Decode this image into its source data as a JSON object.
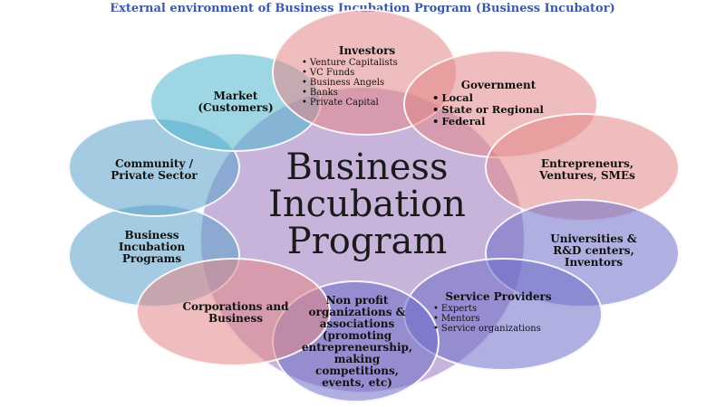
{
  "title": "External environment of Business Incubation Program (Business Incubator)",
  "center": {
    "line1": "Business",
    "line2": "Incubation",
    "line3": "Program"
  },
  "nodes": {
    "investors": {
      "label": "Investors",
      "items": [
        "Venture Capitalists",
        "VC Funds",
        "Business Angels",
        "Banks",
        "Private Capital"
      ]
    },
    "government": {
      "label": "Government",
      "items": [
        "Local",
        "State or Regional",
        "Federal"
      ]
    },
    "entrepreneurs": {
      "line1": "Entrepreneurs,",
      "line2": "Ventures, SMEs"
    },
    "universities": {
      "line1": "Universities &",
      "line2": "R&D centers,",
      "line3": "Inventors"
    },
    "service_providers": {
      "label": "Service Providers",
      "items": [
        "Experts",
        "Mentors",
        "Service organizations"
      ]
    },
    "nonprofit": {
      "line1": "Non profit",
      "line2": "organizations &",
      "line3": "associations",
      "line4": "(promoting",
      "line5": "entrepreneurship,",
      "line6": "making",
      "line7": "competitions,",
      "line8": "events, etc)"
    },
    "corporations": {
      "line1": "Corporations and",
      "line2": "Business"
    },
    "bip": {
      "line1": "Business",
      "line2": "Incubation",
      "line3": "Programs"
    },
    "community": {
      "line1": "Community /",
      "line2": "Private Sector"
    },
    "market": {
      "line1": "Market",
      "line2": "(Customers)"
    }
  },
  "colors": {
    "title": "#3a5aa8",
    "blue": "#5aa0c8",
    "pink": "#e18787",
    "purple": "#6e6ec8",
    "center": "#aa8cc8"
  }
}
